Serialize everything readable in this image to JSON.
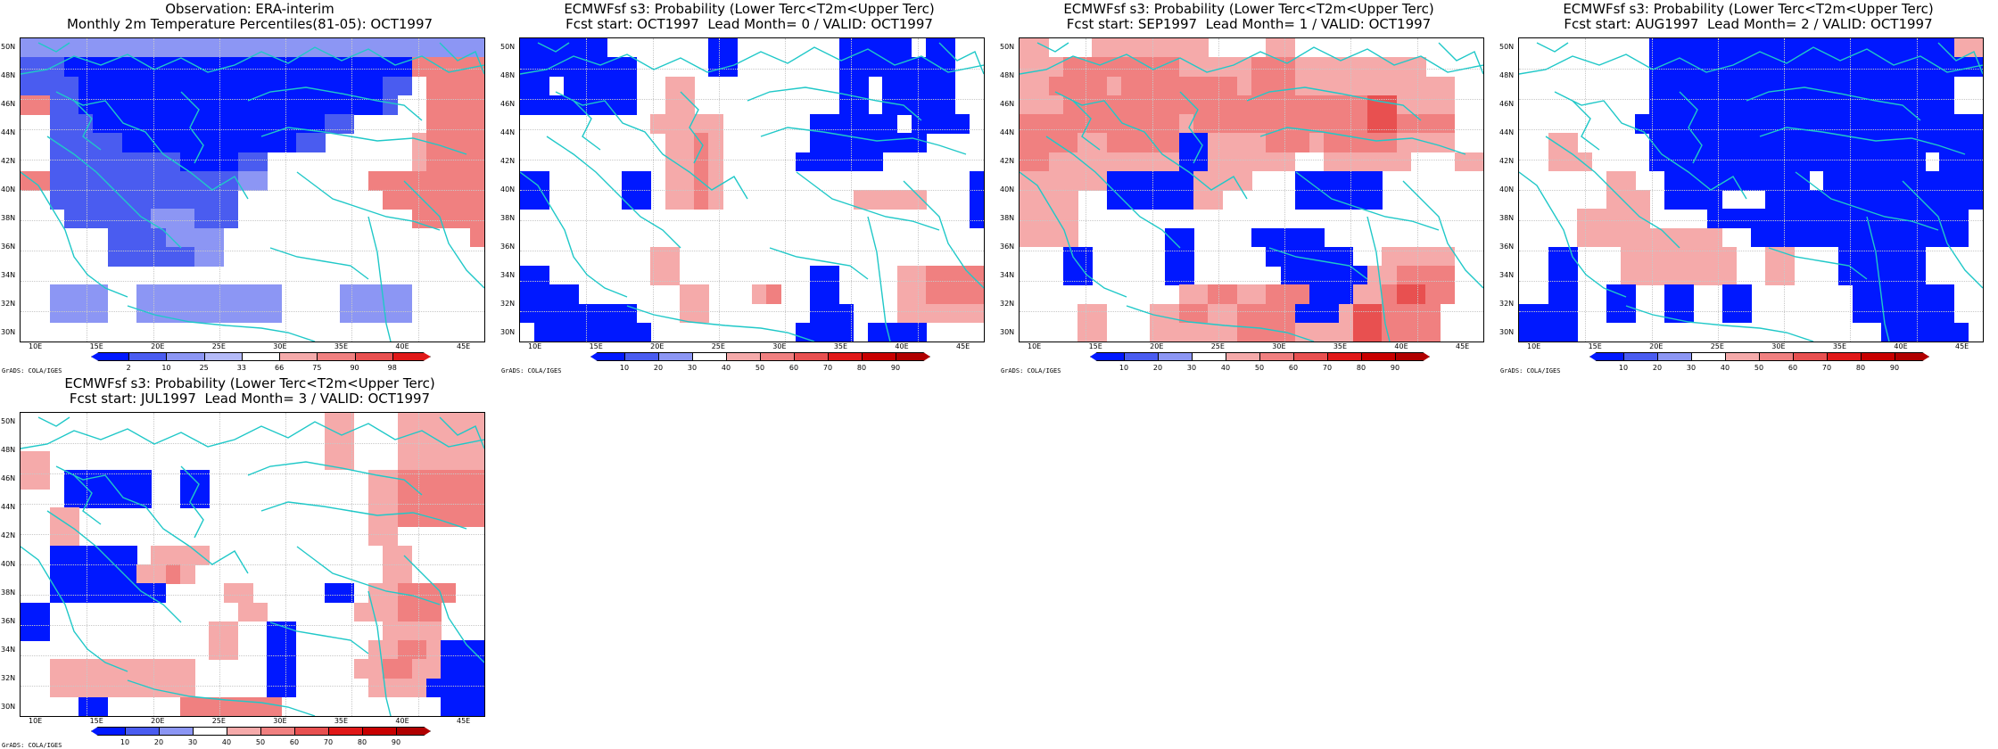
{
  "colors": {
    "blue_dark": "#0018ff",
    "blue_mid": "#4a5cf0",
    "blue_light": "#8c96f4",
    "blue_pale": "#b4baf8",
    "red_pale": "#f5aaaa",
    "red_light": "#f08080",
    "red_mid": "#e85050",
    "red_dark": "#e01818",
    "coast": "#20c8c8"
  },
  "lat_labels": [
    "50N",
    "48N",
    "46N",
    "44N",
    "42N",
    "40N",
    "38N",
    "36N",
    "34N",
    "32N",
    "30N"
  ],
  "lon_labels": [
    "10E",
    "15E",
    "20E",
    "25E",
    "30E",
    "35E",
    "40E",
    "45E"
  ],
  "credit": "GrADS: COLA/IGES",
  "panels": [
    {
      "title": "Observation: ERA-interim\nMonthly 2m Temperature Percentiles(81-05): OCT1997",
      "colorbar": {
        "labels": [
          "2",
          "10",
          "25",
          "33",
          "66",
          "75",
          "90",
          "98"
        ],
        "colors": [
          "#0018ff",
          "#4a5cf0",
          "#8c96f4",
          "#b4baf8",
          "#ffffff",
          "#f5aaaa",
          "#f08080",
          "#e85050",
          "#e01818"
        ]
      },
      "cells": [
        "bbbbbbbbbbbbbbbbbbbbbbbbbbbbbbbb",
        "BBBDDDDDDDDDDDDDDDDDDDDDDDDRRRRR",
        "BBBBDDDDDDDDDDDDDDDDDDDDDBB.RRRR",
        "RRBBDDDDDDDDDDDDDDDDDDDDDB..RRRR",
        "..BBBDDDDDDDDDDDDDDDDBB.....RRRR",
        "..BBBBBDDDDDDDDDDDDBB......rRRRR",
        "..BBBBBBBBBDDDDBB..........rRRRR",
        "RRBBBBBBBBBBBBBbb.......RRRRRRRR",
        "..BBBBBBBBBBBBB..........RRRRRRR",
        "...BBBBBBbbbBBB............RRRRR",
        "......BBBBbbbb.................R",
        "......BBBBBBbb..................",
        "................................",
        "..bbbb..bbbbbbbbbb....bbbbb.....",
        "..bbbb..bbbbbbbbbb....bbbbb.....",
        "................................"
      ]
    },
    {
      "title": "ECMWFsf s3: Probability (Lower Terc<T2m<Upper Terc)\nFcst start: OCT1997  Lead Month= 0 / VALID: OCT1997",
      "colorbar": {
        "labels": [
          "10",
          "20",
          "30",
          "40",
          "50",
          "60",
          "70",
          "80",
          "90"
        ],
        "colors": [
          "#0018ff",
          "#4a5cf0",
          "#8c96f4",
          "#ffffff",
          "#f5aaaa",
          "#f08080",
          "#e85050",
          "#e01818",
          "#c80000",
          "#b00000"
        ]
      },
      "cells": [
        "DDDDDD.......DD.......DDDDD.DD..",
        "DDDDDDDD.....DD.......DDDDDDDD..",
        "DD.DDDDD..rr..........DD.DDDDD..",
        "DDDDDDDD..rr..........DD.DDDDD..",
        ".........rrrrr......DDDDDD.DDDD.",
        "..........rrRr......DDDDDDDD....",
        "..........rrRr.....DDDDDD.......",
        "DD.....DD.rrRr.................D",
        "DD.....DD.rrRr.........rrrrr...D",
        "...............................D",
        "................................",
        ".........rr.....................",
        "DD.......rr.........DD....rrRRRR",
        "DDDD.......rr...rR..DD....rrRRRR",
        "DDDDDDDD...rr.......DDD...rrrrrr",
        ".DDDDDDDD..........DDDD.DDDD...."
      ]
    },
    {
      "title": "ECMWFsf s3: Probability (Lower Terc<T2m<Upper Terc)\nFcst start: SEP1997  Lead Month= 1 / VALID: OCT1997",
      "colorbar": {
        "labels": [
          "10",
          "20",
          "30",
          "40",
          "50",
          "60",
          "70",
          "80",
          "90"
        ],
        "colors": [
          "#0018ff",
          "#4a5cf0",
          "#8c96f4",
          "#ffffff",
          "#f5aaaa",
          "#f08080",
          "#e85050",
          "#e01818",
          "#c80000",
          "#b00000"
        ]
      },
      "cells": [
        "rr...rrrrrrrr....rr.............",
        "rrrRRRRRRRRrrrrrRRRrrrrrrrrr....",
        "rrRRRRrRRRRRRRRrRRRrrrrrrrrrrr..",
        "rrrRRRRRRRRRRRRRRRRRRRRRMMrrrr..",
        "RRRRRRRRRRRrRRRRRRRRRRRRMMRRRR..",
        "RRRRrrRRRRRDDrrrrRRRrRRRRRrrrr..",
        "RRrrrrrrrrrDDrrrrrr..rrrrrr...rr",
        "rrrrrrDDDDDDrrrr...DDDDDD.......",
        "rrrr..DDDDDDrr.....DDDDDD.......",
        "rrrr...........................",
        "rrrr......DD....DDDDD..........",
        "...DD.....DD.....DDDDDD..rrrrr..",
        "...DD.....DD......DDDDDDrrRRRR..",
        "...........rrRRrrRRRDDDrrRMMRR..",
        "....rr...rrRRrrRRRRDDDrMMRRRR...",
        "....rr...rrrrrrRRRRrrrrMMRRRR..."
      ]
    },
    {
      "title": "ECMWFsf s3: Probability (Lower Terc<T2m<Upper Terc)\nFcst start: AUG1997  Lead Month= 2 / VALID: OCT1997",
      "colorbar": {
        "labels": [
          "10",
          "20",
          "30",
          "40",
          "50",
          "60",
          "70",
          "80",
          "90"
        ],
        "colors": [
          "#0018ff",
          "#4a5cf0",
          "#8c96f4",
          "#ffffff",
          "#f5aaaa",
          "#f08080",
          "#e85050",
          "#e01818",
          "#c80000",
          "#b00000"
        ]
      },
      "cells": [
        ".........DDDDDDDDDDDDDDDDDDDDDrr",
        ".........DDDDDDDDDDDDDDDDDDDDDDD",
        ".........DDDDDDDDDDDDDDDDDDDDD..",
        ".........DDDDDDDDDDDDDDDDDDDDD..",
        "........DDDDDDDDDDDDDDDDDDDDDDDD",
        "..rr.....DDDDDDDDDDDDDDDDDDDDDDDD",
        "..rrr....DDDDDDDDDDDDDDDDDDD.DDD",
        "......rr..DDDDDDDDDD.DDDDDDDDDDD",
        "......rrr.DDDD...DDDDDDDDDDDDDDD",
        "....rrrrr....DDDDDDDDDDDDDDDDDD.",
        "....rrrrrrrrrr..DDDDDDDDDDDDDDD.",
        "..DD...rrrrrrrr..rr...DDDDDD....",
        "..DD...rrrrrrrr..rr...DDDDDD....",
        "..DD..DD..DD..DD.......DDDDDDD..",
        "DDDD..DD..DD..DD.......DDDDDDD..",
        "DDDD.....................DDDDDD."
      ]
    },
    {
      "title": "ECMWFsf s3: Probability (Lower Terc<T2m<Upper Terc)\nFcst start: JUL1997  Lead Month= 3 / VALID: OCT1997",
      "colorbar": {
        "labels": [
          "10",
          "20",
          "30",
          "40",
          "50",
          "60",
          "70",
          "80",
          "90"
        ],
        "colors": [
          "#0018ff",
          "#4a5cf0",
          "#8c96f4",
          "#ffffff",
          "#f5aaaa",
          "#f08080",
          "#e85050",
          "#e01818",
          "#c80000",
          "#b00000"
        ]
      },
      "cells": [
        ".....................rr...rrrrrr",
        ".....................rr...rrrrrr",
        "rr...................rr...rrrrrr",
        "rr.DDDDDD..DD...........rrRRRRRR",
        "...DDDDDD..DD...........rrRRRRRR",
        "..rr....................rrRRRRRR",
        "..rr....................rr......",
        "..DDDDDD.rrrr............rr.....",
        "..DDDDDDrrRr.............rr.....",
        "..DDDDDDDD....rr.....DD.rrRRRR..",
        "DD.............rr......rrrRRR...",
        "DD...........rr..DD......rrrr...",
        ".............rr..DD.....rrRRrDDD",
        "..rrrrrrrrrr.....DD....rrRRrrDDD",
        "..rrrrrrrrrr.....DD.....rrrrDDDD",
        "....DD.....RRRRRRR...........DDD"
      ]
    }
  ]
}
